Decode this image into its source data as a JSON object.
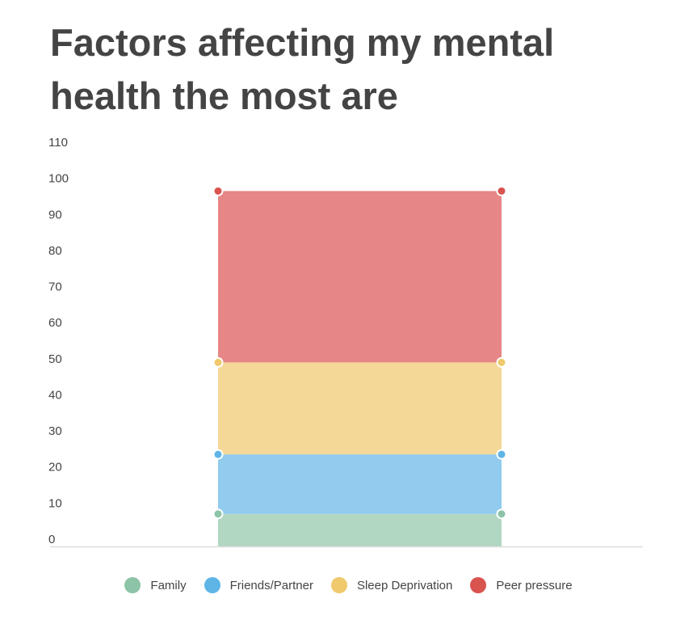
{
  "title": "Factors affecting my mental health the most are",
  "chart_data": {
    "type": "area",
    "stacked": true,
    "title": "Factors affecting my mental health the most are",
    "xlabel": "",
    "ylabel": "",
    "ylim": [
      0,
      110
    ],
    "yticks": [
      0,
      10,
      20,
      30,
      40,
      50,
      60,
      70,
      80,
      90,
      100,
      110
    ],
    "grid": false,
    "legend_position": "bottom",
    "series": [
      {
        "name": "Family",
        "values": [
          9,
          9
        ],
        "color": "#8dc3a7",
        "fill": "#b1d6c2"
      },
      {
        "name": "Friends/Partner",
        "values": [
          16.5,
          16.5
        ],
        "color": "#5eb5e6",
        "fill": "#91cbee"
      },
      {
        "name": "Sleep Deprivation",
        "values": [
          25.5,
          25.5
        ],
        "color": "#efc96b",
        "fill": "#f4d897"
      },
      {
        "name": "Peer pressure",
        "values": [
          47.5,
          47.5
        ],
        "color": "#d9534f",
        "fill": "#e68687"
      }
    ]
  }
}
